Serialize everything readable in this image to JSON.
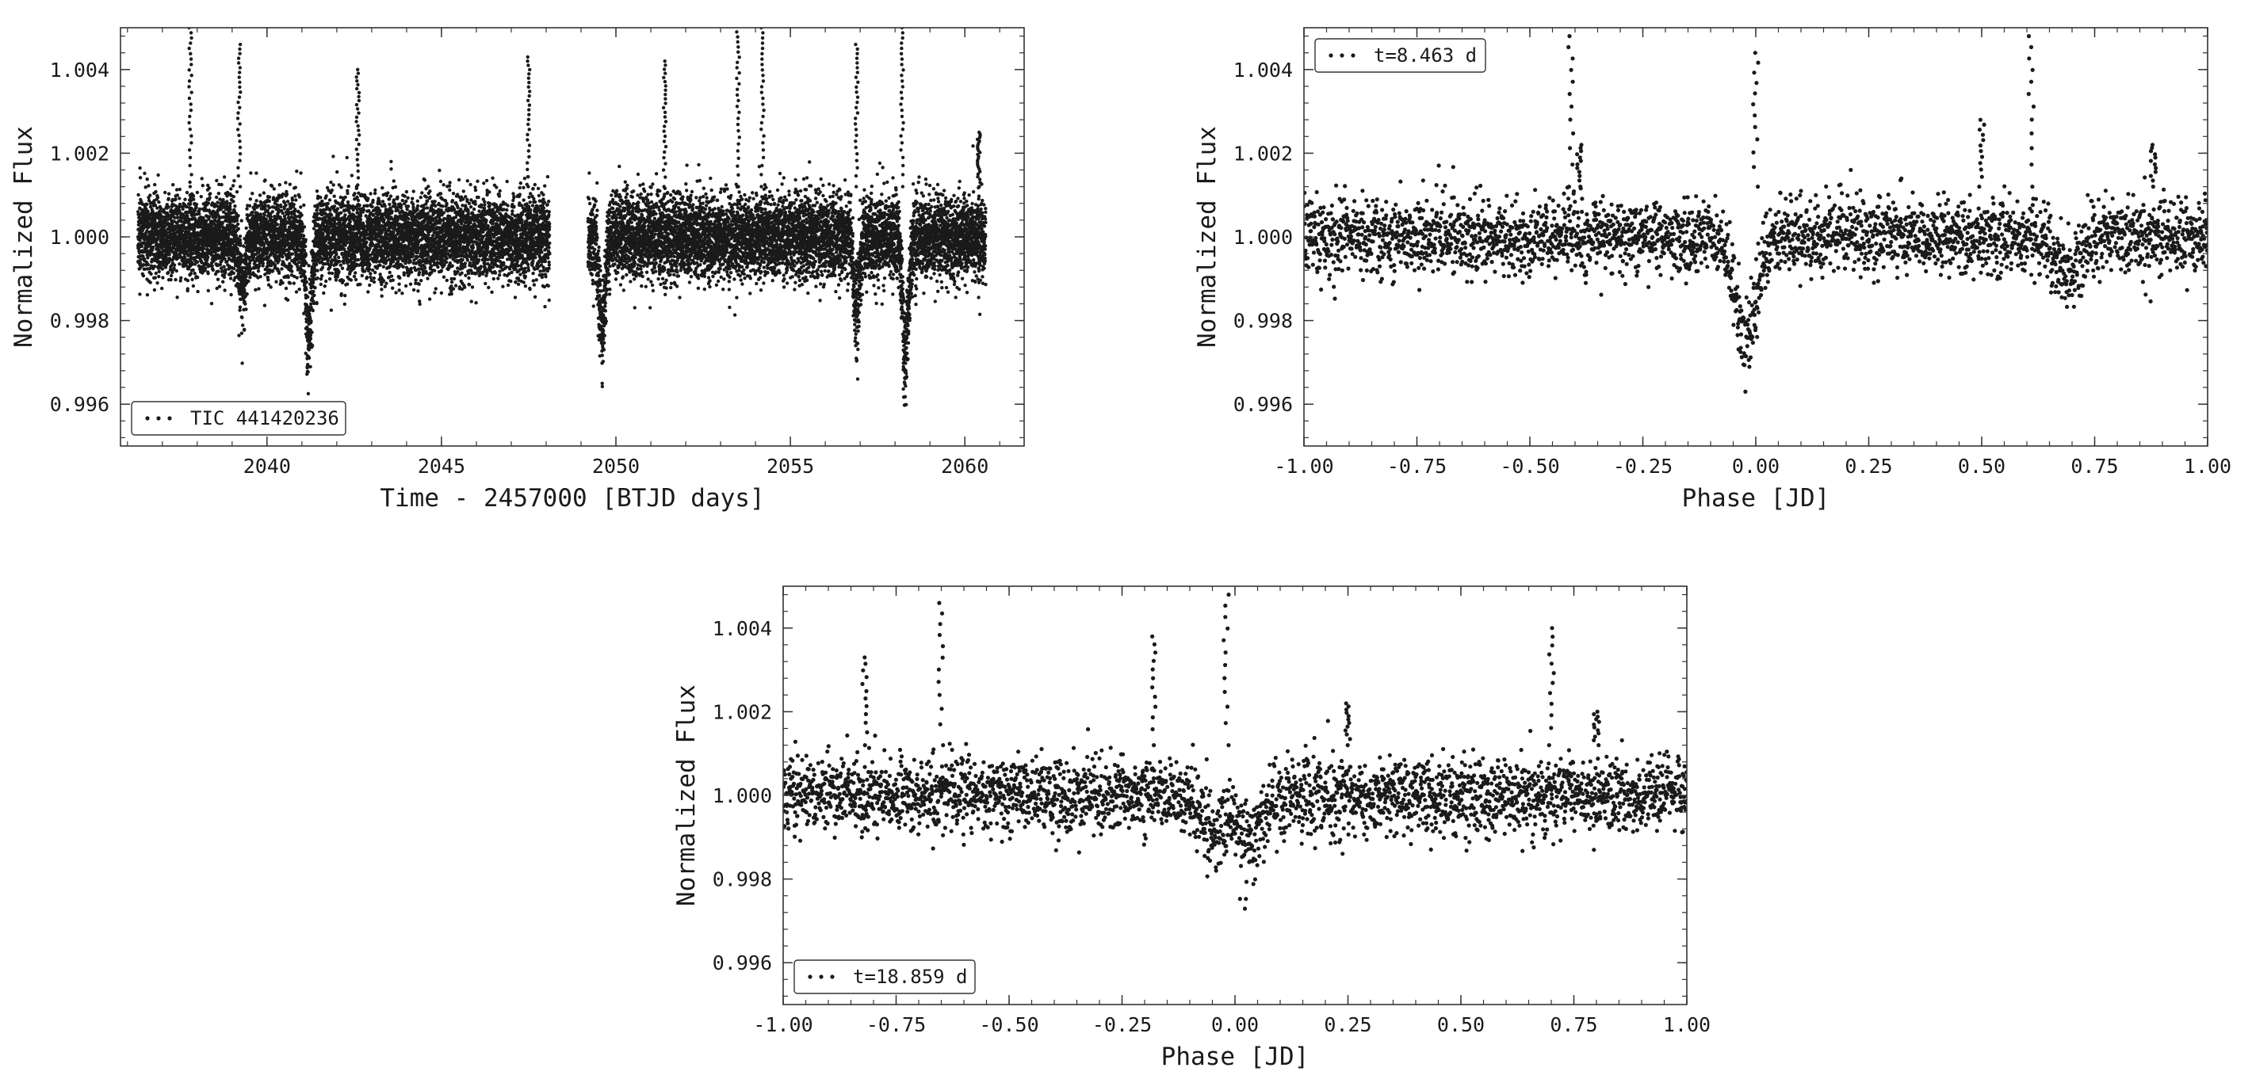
{
  "figure": {
    "colors": {
      "points": "#1a1a1a",
      "axes": "#333333",
      "background": "#ffffff"
    }
  },
  "chart_data": [
    {
      "type": "scatter",
      "title": "",
      "xlabel": "Time - 2457000 [BTJD days]",
      "ylabel": "Normalized Flux",
      "xlim": [
        2035.8,
        2061.7
      ],
      "ylim": [
        0.995,
        1.005
      ],
      "xticks": [
        2040,
        2045,
        2050,
        2055,
        2060
      ],
      "xtick_labels": [
        "2040",
        "2045",
        "2050",
        "2055",
        "2060"
      ],
      "yticks": [
        0.996,
        0.998,
        1.0,
        1.002,
        1.004
      ],
      "ytick_labels": [
        "0.996",
        "0.998",
        "1.000",
        "1.002",
        "1.004"
      ],
      "grid": false,
      "legend": {
        "label": "TIC 441420236",
        "position": "lower-left"
      },
      "series": [
        {
          "name": "TIC 441420236",
          "x_ranges": [
            [
              2036.3,
              2048.1
            ],
            [
              2049.2,
              2060.6
            ]
          ],
          "baseline": 1.0,
          "noise_std": 0.0005,
          "dips": [
            {
              "x": 2041.2,
              "depth": -0.0032
            },
            {
              "x": 2049.6,
              "depth": -0.0029
            },
            {
              "x": 2058.3,
              "depth": -0.0036
            },
            {
              "x": 2056.9,
              "depth": -0.0022
            },
            {
              "x": 2039.3,
              "depth": -0.0016
            }
          ],
          "flares": [
            {
              "x": 2037.8,
              "peak": 1.005
            },
            {
              "x": 2039.2,
              "peak": 1.0046
            },
            {
              "x": 2042.6,
              "peak": 1.004
            },
            {
              "x": 2047.5,
              "peak": 1.0043
            },
            {
              "x": 2051.4,
              "peak": 1.0042
            },
            {
              "x": 2053.5,
              "peak": 1.0049
            },
            {
              "x": 2054.2,
              "peak": 1.005
            },
            {
              "x": 2056.9,
              "peak": 1.0046
            },
            {
              "x": 2058.2,
              "peak": 1.005
            },
            {
              "x": 2060.4,
              "peak": 1.0025
            }
          ]
        }
      ]
    },
    {
      "type": "scatter",
      "title": "",
      "xlabel": "Phase [JD]",
      "ylabel": "Normalized Flux",
      "xlim": [
        -1.0,
        1.0
      ],
      "ylim": [
        0.995,
        1.005
      ],
      "xticks": [
        -1.0,
        -0.75,
        -0.5,
        -0.25,
        0.0,
        0.25,
        0.5,
        0.75,
        1.0
      ],
      "xtick_labels": [
        "-1.00",
        "-0.75",
        "-0.50",
        "-0.25",
        "0.00",
        "0.25",
        "0.50",
        "0.75",
        "1.00"
      ],
      "yticks": [
        0.996,
        0.998,
        1.0,
        1.002,
        1.004
      ],
      "ytick_labels": [
        "0.996",
        "0.998",
        "1.000",
        "1.002",
        "1.004"
      ],
      "grid": false,
      "legend": {
        "label": "t=8.463 d",
        "position": "upper-left"
      },
      "series": [
        {
          "name": "t=8.463 d",
          "x_ranges": [
            [
              -1.0,
              1.0
            ]
          ],
          "baseline": 1.0,
          "noise_std": 0.00045,
          "dips": [
            {
              "x": -0.02,
              "depth": -0.003
            },
            {
              "x": 0.69,
              "depth": -0.0012
            }
          ],
          "flares": [
            {
              "x": -0.41,
              "peak": 1.0048
            },
            {
              "x": -0.39,
              "peak": 1.0022
            },
            {
              "x": 0.0,
              "peak": 1.0044
            },
            {
              "x": 0.5,
              "peak": 1.0028
            },
            {
              "x": 0.61,
              "peak": 1.0048
            },
            {
              "x": 0.88,
              "peak": 1.0022
            }
          ]
        }
      ]
    },
    {
      "type": "scatter",
      "title": "",
      "xlabel": "Phase [JD]",
      "ylabel": "Normalized Flux",
      "xlim": [
        -1.0,
        1.0
      ],
      "ylim": [
        0.995,
        1.005
      ],
      "xticks": [
        -1.0,
        -0.75,
        -0.5,
        -0.25,
        0.0,
        0.25,
        0.5,
        0.75,
        1.0
      ],
      "xtick_labels": [
        "-1.00",
        "-0.75",
        "-0.50",
        "-0.25",
        "0.00",
        "0.25",
        "0.50",
        "0.75",
        "1.00"
      ],
      "yticks": [
        0.996,
        0.998,
        1.0,
        1.002,
        1.004
      ],
      "ytick_labels": [
        "0.996",
        "0.998",
        "1.000",
        "1.002",
        "1.004"
      ],
      "grid": false,
      "legend": {
        "label": "t=18.859 d",
        "position": "lower-left"
      },
      "series": [
        {
          "name": "t=18.859 d",
          "x_ranges": [
            [
              -1.0,
              1.0
            ]
          ],
          "baseline": 1.0,
          "noise_std": 0.00045,
          "dips": [
            {
              "x": 0.03,
              "depth": -0.0014
            },
            {
              "x": -0.05,
              "depth": -0.001
            }
          ],
          "flares": [
            {
              "x": -0.82,
              "peak": 1.0033
            },
            {
              "x": -0.65,
              "peak": 1.0046
            },
            {
              "x": -0.18,
              "peak": 1.0038
            },
            {
              "x": -0.02,
              "peak": 1.0048
            },
            {
              "x": 0.25,
              "peak": 1.0022
            },
            {
              "x": 0.7,
              "peak": 1.004
            },
            {
              "x": 0.8,
              "peak": 1.002
            }
          ]
        }
      ]
    }
  ]
}
